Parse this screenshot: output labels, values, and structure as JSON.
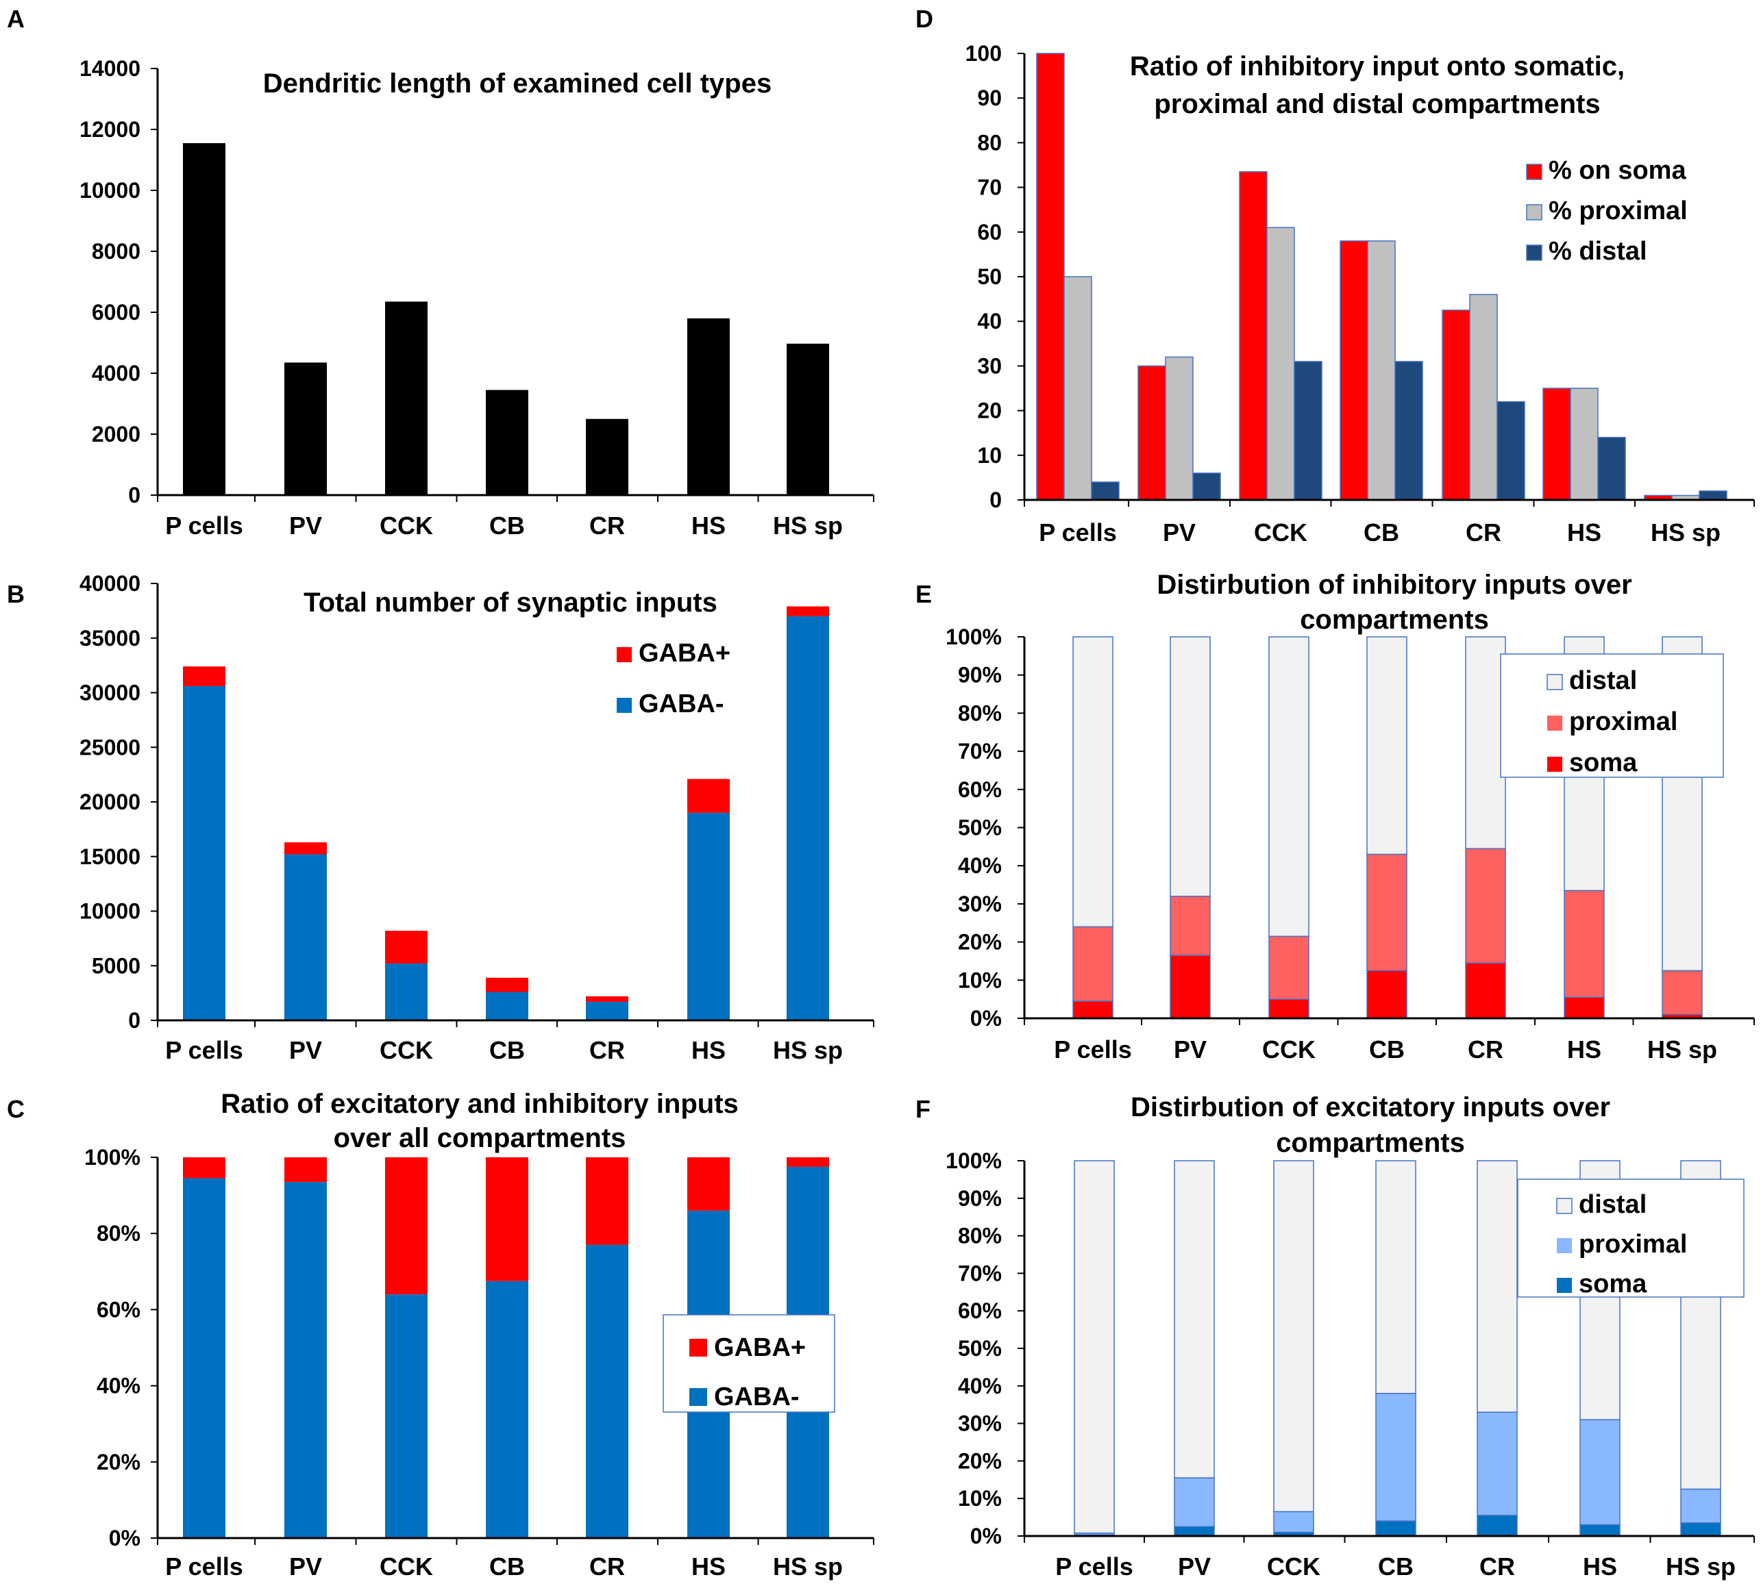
{
  "chart_data": [
    {
      "panel": "A",
      "type": "bar",
      "title_lines": [
        "Dendritic length of examined cell types"
      ],
      "categories": [
        "P cells",
        "PV",
        "CCK",
        "CB",
        "CR",
        "HS",
        "HS sp"
      ],
      "values": [
        11550,
        4350,
        6350,
        3450,
        2500,
        5800,
        4970
      ],
      "ylim": [
        0,
        14000
      ],
      "yticks": [
        "0",
        "2000",
        "4000",
        "6000",
        "8000",
        "10000",
        "12000",
        "14000"
      ],
      "colors": {
        "bar": "#000000"
      }
    },
    {
      "panel": "B",
      "type": "bar",
      "stacked": true,
      "title_lines": [
        "Total number of synaptic inputs"
      ],
      "categories": [
        "P cells",
        "PV",
        "CCK",
        "CB",
        "CR",
        "HS",
        "HS sp"
      ],
      "series": [
        {
          "name": "GABA-",
          "color": "#0070c0",
          "values": [
            30600,
            15200,
            5200,
            2600,
            1700,
            19000,
            37000
          ]
        },
        {
          "name": "GABA+",
          "color": "#ff0000",
          "values": [
            1800,
            1100,
            3000,
            1300,
            500,
            3100,
            900
          ]
        }
      ],
      "legend": [
        "GABA+",
        "GABA-"
      ],
      "legend_position": "top-right",
      "ylim": [
        0,
        40000
      ],
      "yticks": [
        "0",
        "5000",
        "10000",
        "15000",
        "20000",
        "25000",
        "30000",
        "35000",
        "40000"
      ]
    },
    {
      "panel": "C",
      "type": "bar",
      "stacked": true,
      "title_lines": [
        "Ratio of excitatory and inhibitory inputs",
        "over all compartments"
      ],
      "categories": [
        "P cells",
        "PV",
        "CCK",
        "CB",
        "CR",
        "HS",
        "HS sp"
      ],
      "series": [
        {
          "name": "GABA-",
          "color": "#0070c0",
          "values": [
            94.5,
            93.5,
            64,
            67.5,
            77,
            86,
            97.5
          ]
        },
        {
          "name": "GABA+",
          "color": "#ff0000",
          "values": [
            5.5,
            6.5,
            36,
            32.5,
            23,
            14,
            2.5
          ]
        }
      ],
      "legend": [
        "GABA+",
        "GABA-"
      ],
      "legend_position": "bottom-right",
      "ylim": [
        0,
        100
      ],
      "yticks": [
        "0%",
        "20%",
        "40%",
        "60%",
        "80%",
        "100%"
      ]
    },
    {
      "panel": "D",
      "type": "bar",
      "title_lines": [
        "Ratio of inhibitory input onto somatic,",
        "proximal  and distal compartments"
      ],
      "categories": [
        "P cells",
        "PV",
        "CCK",
        "CB",
        "CR",
        "HS",
        "HS sp"
      ],
      "series": [
        {
          "name": "% on soma",
          "color": "#ff0000",
          "values": [
            100,
            30,
            73.5,
            58,
            42.5,
            25,
            1
          ]
        },
        {
          "name": "% proximal",
          "color": "#c0c0c0",
          "values": [
            50,
            32,
            61,
            58,
            46,
            25,
            1
          ]
        },
        {
          "name": "% distal",
          "color": "#1f497d",
          "values": [
            4,
            6,
            31,
            31,
            22,
            14,
            2
          ]
        }
      ],
      "legend_position": "top-right",
      "ylim": [
        0,
        100
      ],
      "yticks": [
        "0",
        "10",
        "20",
        "30",
        "40",
        "50",
        "60",
        "70",
        "80",
        "90",
        "100"
      ]
    },
    {
      "panel": "E",
      "type": "bar",
      "stacked": true,
      "title_lines": [
        "Distirbution of inhibitory inputs over",
        "compartments"
      ],
      "categories": [
        "P cells",
        "PV",
        "CCK",
        "CB",
        "CR",
        "HS",
        "HS sp"
      ],
      "series": [
        {
          "name": "soma",
          "color": "#ff0000",
          "values": [
            4.5,
            16.5,
            5,
            12.5,
            14.5,
            5.5,
            1
          ]
        },
        {
          "name": "proximal",
          "color": "#ff6060",
          "values": [
            19.5,
            15.5,
            16.5,
            30.5,
            30,
            28,
            11.5
          ]
        },
        {
          "name": "distal",
          "color": "#f2f2f2",
          "values": [
            76,
            68,
            78.5,
            57,
            55.5,
            66.5,
            87.5
          ]
        }
      ],
      "legend": [
        "distal",
        "proximal",
        "soma"
      ],
      "legend_position": "top-right",
      "ylim": [
        0,
        100
      ],
      "yticks": [
        "0%",
        "10%",
        "20%",
        "30%",
        "40%",
        "50%",
        "60%",
        "70%",
        "80%",
        "90%",
        "100%"
      ]
    },
    {
      "panel": "F",
      "type": "bar",
      "stacked": true,
      "title_lines": [
        "Distirbution of excitatory inputs over",
        "compartments"
      ],
      "categories": [
        "P cells",
        "PV",
        "CCK",
        "CB",
        "CR",
        "HS",
        "HS sp"
      ],
      "series": [
        {
          "name": "soma",
          "color": "#0070c0",
          "values": [
            0.3,
            2.5,
            1,
            4,
            5.5,
            3,
            3.5
          ]
        },
        {
          "name": "proximal",
          "color": "#8ab8ff",
          "values": [
            0.5,
            13,
            5.5,
            34,
            27.5,
            28,
            9
          ]
        },
        {
          "name": "distal",
          "color": "#f2f2f2",
          "values": [
            99.2,
            84.5,
            93.5,
            62,
            67,
            69,
            87.5
          ]
        }
      ],
      "legend": [
        "distal",
        "proximal",
        "soma"
      ],
      "legend_position": "top-right",
      "ylim": [
        0,
        100
      ],
      "yticks": [
        "0%",
        "10%",
        "20%",
        "30%",
        "40%",
        "50%",
        "60%",
        "70%",
        "80%",
        "90%",
        "100%"
      ]
    }
  ]
}
